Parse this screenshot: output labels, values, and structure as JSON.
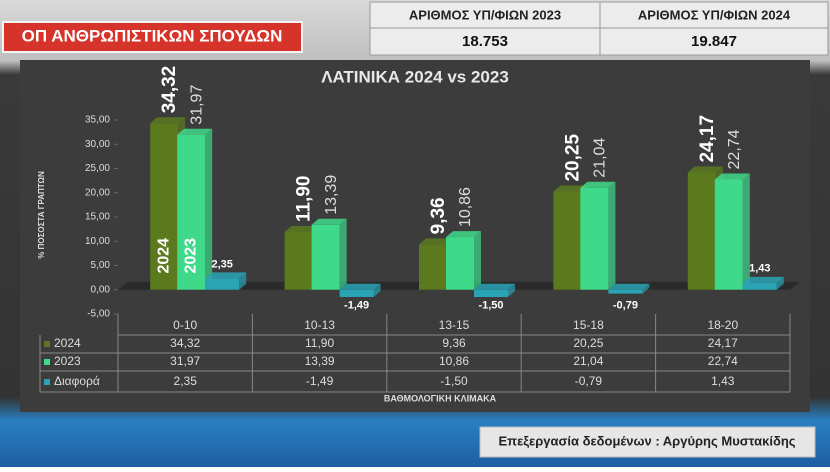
{
  "header": {
    "title": "ΟΠ ΑΝΘΡΩΠΙΣΤΙΚΩΝ ΣΠΟΥΔΩΝ"
  },
  "stats_table": {
    "headers": [
      "ΑΡΙΘΜΟΣ ΥΠ/ΦΙΩΝ 2023",
      "ΑΡΙΘΜΟΣ ΥΠ/ΦΙΩΝ 2024"
    ],
    "values": [
      "18.753",
      "19.847"
    ]
  },
  "chart_data": {
    "type": "bar",
    "title": "ΛΑΤΙΝΙΚΑ 2024 vs 2023",
    "y_label": "% ΠΟΣΟΣΤΑ ΓΡΑΠΤΩΝ",
    "x_label": "ΒΑΘΜΟΛΟΓΙΚΗ ΚΛΙΜΑΚΑ",
    "categories": [
      "0-10",
      "10-13",
      "13-15",
      "15-18",
      "18-20"
    ],
    "series": [
      {
        "name": "2024",
        "color": "#5b7a1e",
        "values": [
          34.32,
          11.9,
          9.36,
          20.25,
          24.17
        ],
        "value_labels": [
          "34,32",
          "11,90",
          "9,36",
          "20,25",
          "24,17"
        ]
      },
      {
        "name": "2023",
        "color": "#3fd98a",
        "values": [
          31.97,
          13.39,
          10.86,
          21.04,
          22.74
        ],
        "value_labels": [
          "31,97",
          "13,39",
          "10,86",
          "21,04",
          "22,74"
        ]
      },
      {
        "name": "Διαφορά",
        "color": "#2aa3b5",
        "values": [
          2.35,
          -1.49,
          -1.5,
          -0.79,
          1.43
        ],
        "value_labels": [
          "2,35",
          "-1,49",
          "-1,50",
          "-0,79",
          "1,43"
        ]
      }
    ],
    "ylim": [
      -5,
      35
    ],
    "yticks": [
      {
        "value": -5,
        "label": "-5,00"
      },
      {
        "value": 0,
        "label": "0,00"
      },
      {
        "value": 5,
        "label": "5,00"
      },
      {
        "value": 10,
        "label": "10,00"
      },
      {
        "value": 15,
        "label": "15,00"
      },
      {
        "value": 20,
        "label": "20,00"
      },
      {
        "value": 25,
        "label": "25,00"
      },
      {
        "value": 30,
        "label": "30,00"
      },
      {
        "value": 35,
        "label": "35,00"
      }
    ],
    "grid": false
  },
  "footer": {
    "text": "Επεξεργασία δεδομένων : Αργύρης Μυστακίδης"
  }
}
